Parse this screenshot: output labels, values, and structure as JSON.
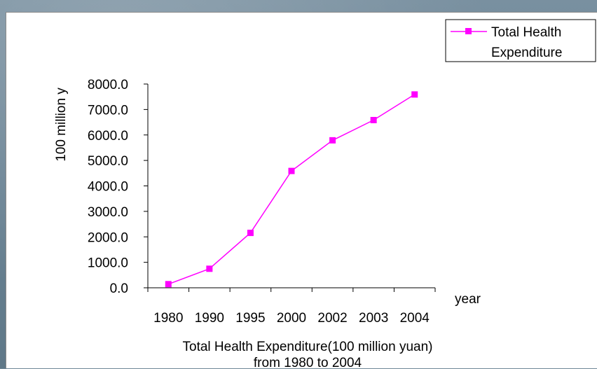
{
  "chart_data": {
    "type": "line",
    "title": "Total Health Expenditure(100 million yuan)",
    "subtitle": "from 1980 to 2004",
    "xlabel": "year",
    "ylabel": "100 million y",
    "categories": [
      "1980",
      "1990",
      "1995",
      "2000",
      "2002",
      "2003",
      "2004"
    ],
    "y_tick_labels": [
      "0.0",
      "1000.0",
      "2000.0",
      "3000.0",
      "4000.0",
      "5000.0",
      "6000.0",
      "7000.0",
      "8000.0"
    ],
    "ylim": [
      0,
      8000
    ],
    "grid": false,
    "legend_position": "top-right",
    "series": [
      {
        "name": "Total Health Expenditure",
        "values": [
          143,
          747,
          2155,
          4587,
          5790,
          6584,
          7590
        ],
        "color": "#ff00ff",
        "marker": "square"
      }
    ]
  }
}
